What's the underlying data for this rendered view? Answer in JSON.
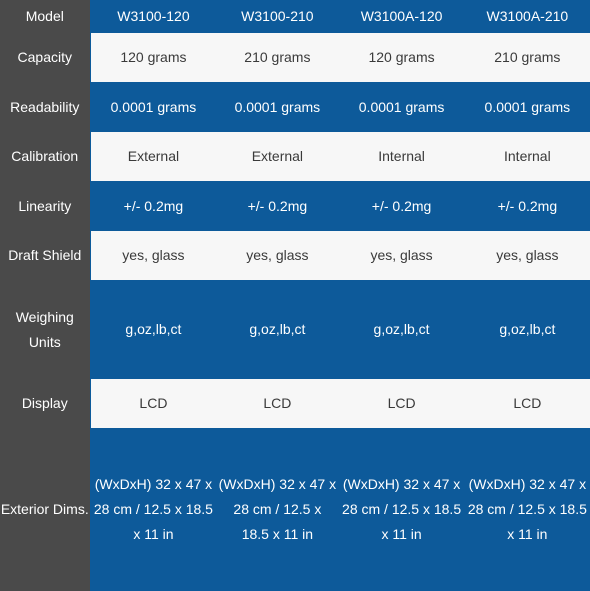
{
  "header": {
    "label": "Model",
    "models": [
      "W3100-120",
      "W3100-210",
      "W3100A-120",
      "W3100A-210"
    ]
  },
  "rows": [
    {
      "label": "Capacity",
      "values": [
        "120 grams",
        "210 grams",
        "120 grams",
        "210 grams"
      ]
    },
    {
      "label": "Readability",
      "values": [
        "0.0001 grams",
        "0.0001 grams",
        "0.0001 grams",
        "0.0001 grams"
      ]
    },
    {
      "label": "Calibration",
      "values": [
        "External",
        "External",
        "Internal",
        "Internal"
      ]
    },
    {
      "label": "Linearity",
      "values": [
        "+/- 0.2mg",
        "+/- 0.2mg",
        "+/- 0.2mg",
        "+/- 0.2mg"
      ]
    },
    {
      "label": "Draft Shield",
      "values": [
        "yes, glass",
        "yes, glass",
        "yes, glass",
        "yes, glass"
      ]
    },
    {
      "label": "Weighing Units",
      "values": [
        "g,oz,lb,ct",
        "g,oz,lb,ct",
        "g,oz,lb,ct",
        "g,oz,lb,ct"
      ]
    },
    {
      "label": "Display",
      "values": [
        "LCD",
        "LCD",
        "LCD",
        "LCD"
      ]
    },
    {
      "label": "Exterior Dims.",
      "values": [
        "(WxDxH) 32 x 47 x 28 cm / 12.5 x 18.5 x 11 in",
        "(WxDxH) 32 x 47 x 28 cm / 12.5 x 18.5 x 11 in",
        "(WxDxH) 32 x 47 x 28 cm / 12.5 x 18.5 x 11 in",
        "(WxDxH) 32 x 47 x 28 cm / 12.5 x 18.5 x 11 in"
      ]
    }
  ],
  "colors": {
    "label_background": "#4a4a4a",
    "accent_blue": "#0d5a9a",
    "light_row": "#f7f7f7",
    "light_text": "#3a3a3a",
    "dark_text": "#ffffff"
  }
}
